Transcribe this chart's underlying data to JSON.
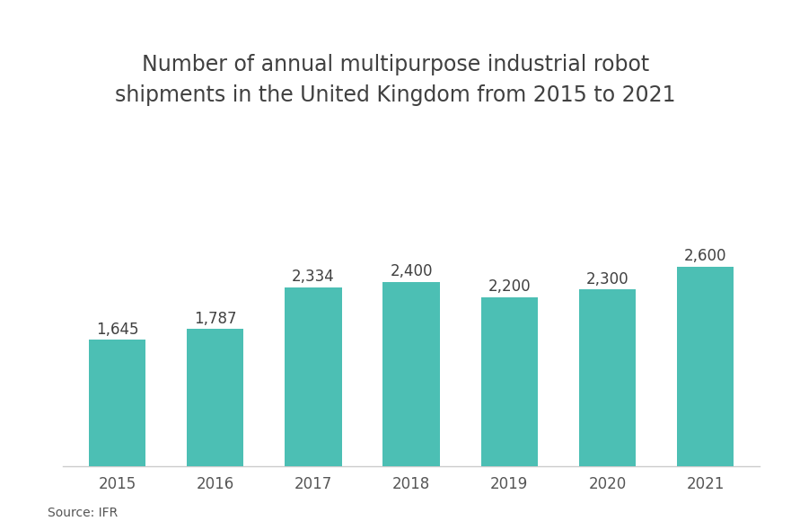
{
  "title": "Number of annual multipurpose industrial robot\nshipments in the United Kingdom from 2015 to 2021",
  "categories": [
    "2015",
    "2016",
    "2017",
    "2018",
    "2019",
    "2020",
    "2021"
  ],
  "values": [
    1645,
    1787,
    2334,
    2400,
    2200,
    2300,
    2600
  ],
  "labels": [
    "1,645",
    "1,787",
    "2,334",
    "2,400",
    "2,200",
    "2,300",
    "2,600"
  ],
  "bar_color": "#4CBFB4",
  "background_color": "#ffffff",
  "title_fontsize": 17,
  "label_fontsize": 12,
  "tick_fontsize": 12,
  "source_text": "Source: IFR",
  "ylim": [
    0,
    4000
  ],
  "title_color": "#404040",
  "label_color": "#404040",
  "tick_color": "#555555"
}
